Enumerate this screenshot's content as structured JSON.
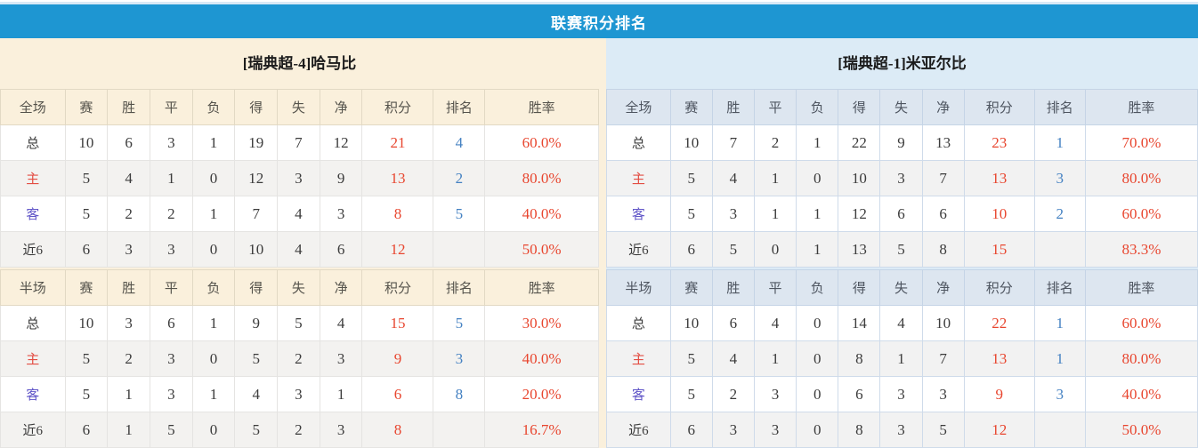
{
  "page_title": "联赛积分排名",
  "columns": [
    "赛",
    "胜",
    "平",
    "负",
    "得",
    "失",
    "净",
    "积分",
    "排名",
    "胜率"
  ],
  "column_names_semantic": [
    "games",
    "wins",
    "draws",
    "losses",
    "goals-for",
    "goals-against",
    "goal-diff",
    "points",
    "rank",
    "win-rate"
  ],
  "colors": {
    "title_bar_blue": "#1e96d2",
    "left_panel_cream": "#faf0dc",
    "right_panel_blue": "#dcebf6",
    "right_header_blue": "#dde6f0",
    "points_red": "#e8462f",
    "rank_blue": "#4481c2",
    "win_rate_red": "#e8462f",
    "home_label_red": "#e34d43",
    "away_label_purple": "#6156c8"
  },
  "left_panel": {
    "team_title": "[瑞典超-4]哈马比",
    "full": {
      "scope_label": "全场",
      "rows": [
        {
          "type": "total",
          "label": "总",
          "values": [
            "10",
            "6",
            "3",
            "1",
            "19",
            "7",
            "12"
          ],
          "points": "21",
          "rank": "4",
          "win_rate": "60.0%"
        },
        {
          "type": "home",
          "label": "主",
          "values": [
            "5",
            "4",
            "1",
            "0",
            "12",
            "3",
            "9"
          ],
          "points": "13",
          "rank": "2",
          "win_rate": "80.0%"
        },
        {
          "type": "away",
          "label": "客",
          "values": [
            "5",
            "2",
            "2",
            "1",
            "7",
            "4",
            "3"
          ],
          "points": "8",
          "rank": "5",
          "win_rate": "40.0%"
        },
        {
          "type": "recent",
          "label": "近6",
          "values": [
            "6",
            "3",
            "3",
            "0",
            "10",
            "4",
            "6"
          ],
          "points": "12",
          "rank": "",
          "win_rate": "50.0%"
        }
      ]
    },
    "half": {
      "scope_label": "半场",
      "rows": [
        {
          "type": "total",
          "label": "总",
          "values": [
            "10",
            "3",
            "6",
            "1",
            "9",
            "5",
            "4"
          ],
          "points": "15",
          "rank": "5",
          "win_rate": "30.0%"
        },
        {
          "type": "home",
          "label": "主",
          "values": [
            "5",
            "2",
            "3",
            "0",
            "5",
            "2",
            "3"
          ],
          "points": "9",
          "rank": "3",
          "win_rate": "40.0%"
        },
        {
          "type": "away",
          "label": "客",
          "values": [
            "5",
            "1",
            "3",
            "1",
            "4",
            "3",
            "1"
          ],
          "points": "6",
          "rank": "8",
          "win_rate": "20.0%"
        },
        {
          "type": "recent",
          "label": "近6",
          "values": [
            "6",
            "1",
            "5",
            "0",
            "5",
            "2",
            "3"
          ],
          "points": "8",
          "rank": "",
          "win_rate": "16.7%"
        }
      ]
    }
  },
  "right_panel": {
    "team_title": "[瑞典超-1]米亚尔比",
    "full": {
      "scope_label": "全场",
      "rows": [
        {
          "type": "total",
          "label": "总",
          "values": [
            "10",
            "7",
            "2",
            "1",
            "22",
            "9",
            "13"
          ],
          "points": "23",
          "rank": "1",
          "win_rate": "70.0%"
        },
        {
          "type": "home",
          "label": "主",
          "values": [
            "5",
            "4",
            "1",
            "0",
            "10",
            "3",
            "7"
          ],
          "points": "13",
          "rank": "3",
          "win_rate": "80.0%"
        },
        {
          "type": "away",
          "label": "客",
          "values": [
            "5",
            "3",
            "1",
            "1",
            "12",
            "6",
            "6"
          ],
          "points": "10",
          "rank": "2",
          "win_rate": "60.0%"
        },
        {
          "type": "recent",
          "label": "近6",
          "values": [
            "6",
            "5",
            "0",
            "1",
            "13",
            "5",
            "8"
          ],
          "points": "15",
          "rank": "",
          "win_rate": "83.3%"
        }
      ]
    },
    "half": {
      "scope_label": "半场",
      "rows": [
        {
          "type": "total",
          "label": "总",
          "values": [
            "10",
            "6",
            "4",
            "0",
            "14",
            "4",
            "10"
          ],
          "points": "22",
          "rank": "1",
          "win_rate": "60.0%"
        },
        {
          "type": "home",
          "label": "主",
          "values": [
            "5",
            "4",
            "1",
            "0",
            "8",
            "1",
            "7"
          ],
          "points": "13",
          "rank": "1",
          "win_rate": "80.0%"
        },
        {
          "type": "away",
          "label": "客",
          "values": [
            "5",
            "2",
            "3",
            "0",
            "6",
            "3",
            "3"
          ],
          "points": "9",
          "rank": "3",
          "win_rate": "40.0%"
        },
        {
          "type": "recent",
          "label": "近6",
          "values": [
            "6",
            "3",
            "3",
            "0",
            "8",
            "3",
            "5"
          ],
          "points": "12",
          "rank": "",
          "win_rate": "50.0%"
        }
      ]
    }
  }
}
